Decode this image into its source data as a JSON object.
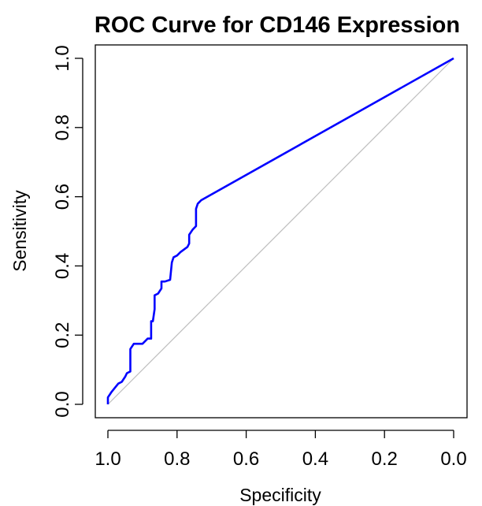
{
  "chart_data": {
    "type": "line",
    "title": "ROC Curve for CD146 Expression",
    "xlabel": "Specificity",
    "ylabel": "Sensitivity",
    "x_reversed": true,
    "xlim": [
      1.0,
      0.0
    ],
    "ylim": [
      0.0,
      1.0
    ],
    "x_ticks": [
      "1.0",
      "0.8",
      "0.6",
      "0.4",
      "0.2",
      "0.0"
    ],
    "x_tick_values": [
      1.0,
      0.8,
      0.6,
      0.4,
      0.2,
      0.0
    ],
    "y_ticks": [
      "0.0",
      "0.2",
      "0.4",
      "0.6",
      "0.8",
      "1.0"
    ],
    "y_tick_values": [
      0.0,
      0.2,
      0.4,
      0.6,
      0.8,
      1.0
    ],
    "grid": false,
    "series": [
      {
        "color": "#0000ff",
        "x": [
          1.0,
          1.0,
          0.99,
          0.97,
          0.96,
          0.95,
          0.945,
          0.935,
          0.935,
          0.925,
          0.9,
          0.89,
          0.885,
          0.875,
          0.875,
          0.87,
          0.865,
          0.865,
          0.855,
          0.845,
          0.845,
          0.835,
          0.82,
          0.815,
          0.81,
          0.8,
          0.79,
          0.77,
          0.765,
          0.765,
          0.755,
          0.745,
          0.745,
          0.74,
          0.73,
          0.0
        ],
        "y": [
          0.0,
          0.02,
          0.035,
          0.06,
          0.065,
          0.08,
          0.09,
          0.095,
          0.16,
          0.175,
          0.175,
          0.185,
          0.19,
          0.19,
          0.24,
          0.24,
          0.275,
          0.315,
          0.32,
          0.335,
          0.355,
          0.355,
          0.36,
          0.41,
          0.425,
          0.43,
          0.44,
          0.455,
          0.465,
          0.49,
          0.505,
          0.515,
          0.565,
          0.58,
          0.59,
          1.0
        ]
      },
      {
        "color": "#bebebe",
        "x": [
          1.0,
          0.0
        ],
        "y": [
          0.0,
          1.0
        ]
      }
    ]
  }
}
